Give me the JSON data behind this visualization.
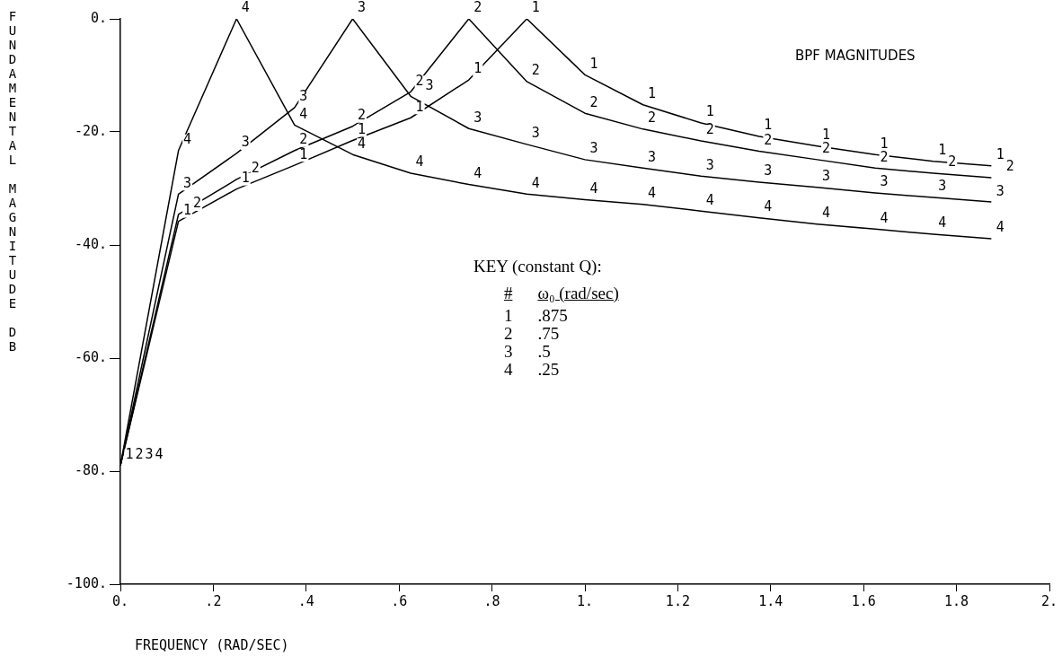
{
  "chart_data": {
    "type": "line",
    "title": "BPF MAGNITUDES",
    "xlabel": "FREQUENCY (RAD/SEC)",
    "ylabel": "FUNDAMENTAL MAGNITUDE DB",
    "legend_title": "KEY (constant Q):",
    "annotations": [
      "#",
      "ω₀ (rad/sec)",
      ".875",
      ".75",
      ".5",
      ".25"
    ],
    "x": [
      0,
      0.125,
      0.25,
      0.375,
      0.5,
      0.625,
      0.75,
      0.875,
      1.0,
      1.125,
      1.25,
      1.375,
      1.5,
      1.625,
      1.75,
      1.875
    ],
    "series": [
      {
        "name": "1",
        "color": "#000000",
        "values": [
          -79,
          -35.8,
          -30.1,
          -25.9,
          -21.5,
          -17.5,
          -10.8,
          0,
          -9.9,
          -15.2,
          -18.4,
          -20.8,
          -22.5,
          -24,
          -25.2,
          -26
        ]
      },
      {
        "name": "2",
        "color": "#000000",
        "values": [
          -79,
          -34.6,
          -28.4,
          -23.3,
          -19,
          -12.9,
          0,
          -11.1,
          -16.7,
          -19.5,
          -21.6,
          -23.4,
          -24.9,
          -26.4,
          -27.3,
          -28.1
        ]
      },
      {
        "name": "3",
        "color": "#000000",
        "values": [
          -79,
          -31,
          -23.8,
          -15.7,
          0,
          -13.7,
          -19.4,
          -22.2,
          -24.9,
          -26.4,
          -27.8,
          -28.9,
          -29.8,
          -30.8,
          -31.6,
          -32.4
        ]
      },
      {
        "name": "4",
        "color": "#000000",
        "values": [
          -79,
          -23.3,
          0,
          -18.8,
          -24,
          -27.3,
          -29.3,
          -31,
          -32,
          -32.8,
          -34,
          -35.2,
          -36.3,
          -37.2,
          -38.1,
          -38.9
        ]
      }
    ],
    "xlim": [
      0,
      2
    ],
    "xticks": [
      {
        "value": 0,
        "label": "0."
      },
      {
        "value": 0.2,
        "label": ".2"
      },
      {
        "value": 0.4,
        "label": ".4"
      },
      {
        "value": 0.6,
        "label": ".6"
      },
      {
        "value": 0.8,
        "label": ".8"
      },
      {
        "value": 1,
        "label": "1."
      },
      1.2,
      1.4,
      1.6,
      1.8,
      {
        "value": 2,
        "label": "2."
      }
    ],
    "ylim": [
      -100,
      0
    ],
    "yticks": [
      {
        "value": 0,
        "label": "0."
      },
      {
        "value": -20,
        "label": "-20."
      },
      {
        "value": -40,
        "label": "-40."
      },
      {
        "value": -60,
        "label": "-60."
      },
      {
        "value": -80,
        "label": "-80."
      },
      {
        "value": -100,
        "label": "-100."
      }
    ],
    "grid": false,
    "legend": "center",
    "marker": "none",
    "line_style": "solid"
  }
}
